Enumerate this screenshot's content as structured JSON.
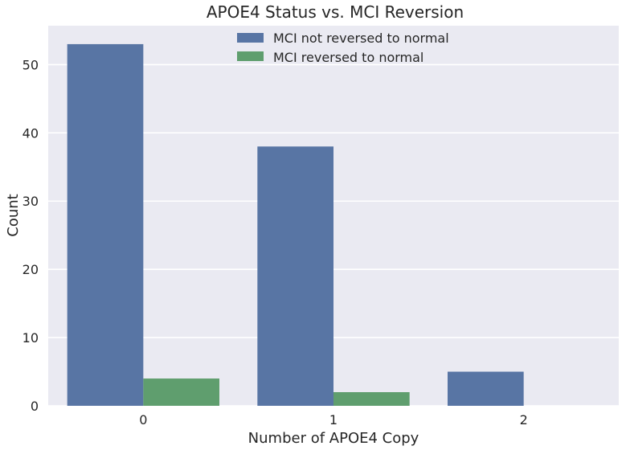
{
  "chart_data": {
    "type": "bar",
    "title": "APOE4 Status vs. MCI Reversion",
    "xlabel": "Number of APOE4 Copy",
    "ylabel": "Count",
    "categories": [
      "0",
      "1",
      "2"
    ],
    "series": [
      {
        "name": "MCI not reversed to normal",
        "values": [
          53,
          38,
          5
        ],
        "color": "#5875a4"
      },
      {
        "name": "MCI reversed to normal",
        "values": [
          4,
          2,
          0
        ],
        "color": "#5f9e6e"
      }
    ],
    "ylim": [
      0,
      55.7
    ],
    "yticks": [
      0,
      10,
      20,
      30,
      40,
      50
    ],
    "grid": true,
    "legend": "top-center",
    "background": "#eaeaf2",
    "grid_color": "#ffffff"
  }
}
